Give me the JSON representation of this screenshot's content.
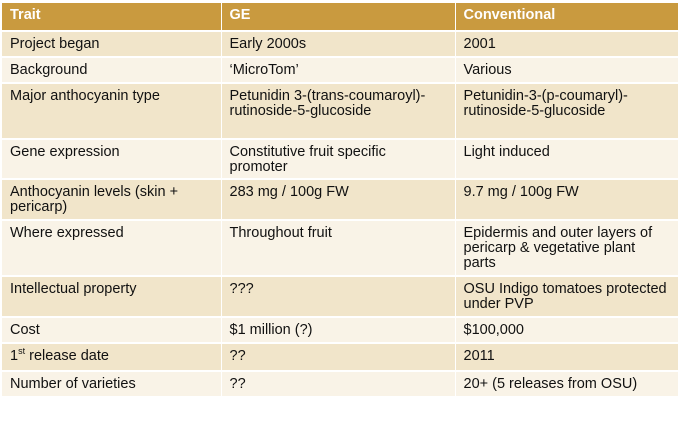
{
  "columns": [
    "Trait",
    "GE",
    "Conventional"
  ],
  "rows": [
    {
      "trait": "Project began",
      "ge": "Early 2000s",
      "conv": "2001"
    },
    {
      "trait": "Background",
      "ge": "‘MicroTom’",
      "conv": "Various"
    },
    {
      "trait": "Major anthocyanin type",
      "ge": "Petunidin 3-(trans-coumaroyl)-rutinoside-5-glucoside",
      "conv": "Petunidin-3-(p-coumaryl)-rutinoside-5-glucoside"
    },
    {
      "trait": "Gene expression",
      "ge": "Constitutive fruit specific promoter",
      "conv": "Light induced"
    },
    {
      "trait": "Anthocyanin levels (skin + pericarp)",
      "ge": "283 mg / 100g FW",
      "conv": "9.7 mg / 100g FW"
    },
    {
      "trait": "Where expressed",
      "ge": "Throughout fruit",
      "conv": "Epidermis and outer layers of pericarp & vegetative plant parts"
    },
    {
      "trait": "Intellectual property",
      "ge": "???",
      "conv": "OSU Indigo tomatoes protected under PVP"
    },
    {
      "trait": "Cost",
      "ge": "$1 million (?)",
      "conv": "$100,000"
    },
    {
      "trait_prefix": "1",
      "trait_sup": "st",
      "trait": " release date",
      "ge": "??",
      "conv": "2011"
    },
    {
      "trait": "Number of varieties",
      "ge": "??",
      "conv": "20+ (5 releases from OSU)"
    }
  ],
  "colors": {
    "header": "#c99a3f",
    "row_odd": "#f1e5ca",
    "row_even": "#f9f3e7"
  }
}
